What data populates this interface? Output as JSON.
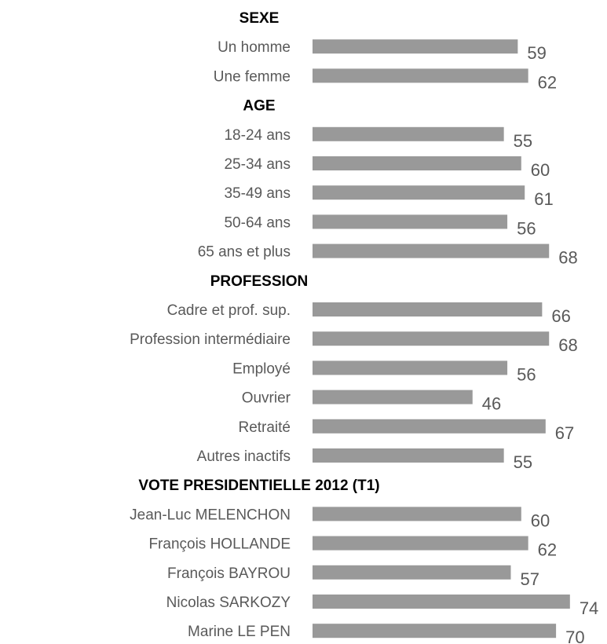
{
  "chart_data": {
    "type": "bar",
    "orientation": "horizontal",
    "title": "",
    "xlabel": "",
    "ylabel": "",
    "xlim": [
      0,
      74
    ],
    "grid": false,
    "legend": "none",
    "colors": {
      "bar": "#999999",
      "label": "#595959",
      "heading": "#000000"
    },
    "groups": [
      {
        "heading": "SEXE",
        "items": [
          {
            "label": "Un homme",
            "value": 59
          },
          {
            "label": "Une femme",
            "value": 62
          }
        ]
      },
      {
        "heading": "AGE",
        "items": [
          {
            "label": "18-24 ans",
            "value": 55
          },
          {
            "label": "25-34 ans",
            "value": 60
          },
          {
            "label": "35-49 ans",
            "value": 61
          },
          {
            "label": "50-64 ans",
            "value": 56
          },
          {
            "label": "65 ans et plus",
            "value": 68
          }
        ]
      },
      {
        "heading": "PROFESSION",
        "items": [
          {
            "label": "Cadre et prof. sup.",
            "value": 66
          },
          {
            "label": "Profession intermédiaire",
            "value": 68
          },
          {
            "label": "Employé",
            "value": 56
          },
          {
            "label": "Ouvrier",
            "value": 46
          },
          {
            "label": "Retraité",
            "value": 67
          },
          {
            "label": "Autres inactifs",
            "value": 55
          }
        ]
      },
      {
        "heading": "VOTE PRESIDENTIELLE 2012 (T1)",
        "items": [
          {
            "label": "Jean-Luc MELENCHON",
            "value": 60
          },
          {
            "label": "François HOLLANDE",
            "value": 62
          },
          {
            "label": "François BAYROU",
            "value": 57
          },
          {
            "label": "Nicolas SARKOZY",
            "value": 74
          },
          {
            "label": "Marine LE PEN",
            "value": 70
          }
        ]
      }
    ]
  }
}
